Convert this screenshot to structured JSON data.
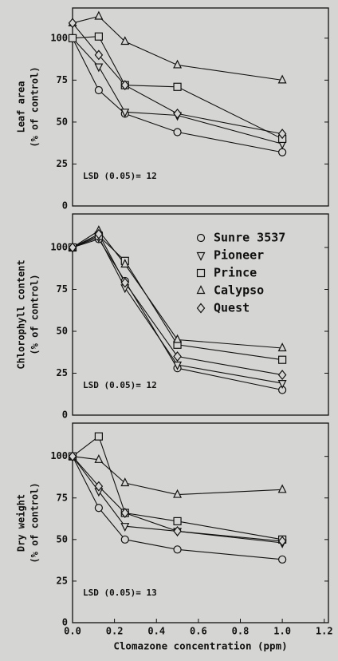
{
  "chart_data": [
    {
      "type": "line",
      "ylabel": [
        "Leaf area",
        "(% of control)"
      ],
      "annotation": "LSD (0.05)= 12",
      "x": [
        0,
        0.125,
        0.25,
        0.5,
        1.0
      ],
      "xlim": [
        0,
        1.22
      ],
      "ylim": [
        0,
        118
      ],
      "yticks": [
        0,
        25,
        50,
        75,
        100
      ],
      "series": [
        {
          "marker": "circle",
          "color": "#111111",
          "values": [
            100,
            69,
            55,
            44,
            32
          ]
        },
        {
          "marker": "triangle-down",
          "color": "#111111",
          "values": [
            100,
            83,
            56,
            54,
            37
          ]
        },
        {
          "marker": "square",
          "color": "#111111",
          "values": [
            100,
            101,
            72,
            71,
            40
          ]
        },
        {
          "marker": "triangle-up",
          "color": "#111111",
          "values": [
            109,
            113,
            98,
            84,
            75
          ]
        },
        {
          "marker": "diamond",
          "color": "#111111",
          "values": [
            109,
            90,
            72,
            55,
            43
          ]
        }
      ]
    },
    {
      "type": "line",
      "ylabel": [
        "Chlorophyll content",
        "(% of control)"
      ],
      "annotation": "LSD (0.05)= 12",
      "x": [
        0,
        0.125,
        0.25,
        0.5,
        1.0
      ],
      "xlim": [
        0,
        1.22
      ],
      "ylim": [
        0,
        120
      ],
      "yticks": [
        0,
        25,
        50,
        75,
        100
      ],
      "series": [
        {
          "name": "Sunre 3537",
          "marker": "circle",
          "color": "#111111",
          "values": [
            100,
            105,
            80,
            28,
            15
          ]
        },
        {
          "name": "Pioneer",
          "marker": "triangle-down",
          "color": "#111111",
          "values": [
            100,
            106,
            76,
            30,
            19
          ]
        },
        {
          "name": "Prince",
          "marker": "square",
          "color": "#111111",
          "values": [
            100,
            107,
            92,
            42,
            33
          ]
        },
        {
          "name": "Calypso",
          "marker": "triangle-up",
          "color": "#111111",
          "values": [
            100,
            110,
            90,
            45,
            40
          ]
        },
        {
          "name": "Quest",
          "marker": "diamond",
          "color": "#111111",
          "values": [
            100,
            108,
            79,
            35,
            24
          ]
        }
      ]
    },
    {
      "type": "line",
      "ylabel": [
        "Dry weight",
        "(% of control)"
      ],
      "annotation": "LSD (0.05)= 13",
      "xlabel": "Clomazone concentration (ppm)",
      "x": [
        0,
        0.125,
        0.25,
        0.5,
        1.0
      ],
      "xlim": [
        0,
        1.22
      ],
      "ylim": [
        0,
        120
      ],
      "yticks": [
        0,
        25,
        50,
        75,
        100
      ],
      "xticks": [
        {
          "value": 0,
          "label": "0.0"
        },
        0.2,
        0.4,
        0.6,
        0.8,
        {
          "value": 1,
          "label": "1.0"
        },
        1.2
      ],
      "series": [
        {
          "marker": "circle",
          "color": "#111111",
          "values": [
            100,
            69,
            50,
            44,
            38
          ]
        },
        {
          "marker": "triangle-down",
          "color": "#111111",
          "values": [
            100,
            79,
            58,
            55,
            48
          ]
        },
        {
          "marker": "square",
          "color": "#111111",
          "values": [
            100,
            112,
            66,
            61,
            50
          ]
        },
        {
          "marker": "triangle-up",
          "color": "#111111",
          "values": [
            100,
            98,
            84,
            77,
            80
          ]
        },
        {
          "marker": "diamond",
          "color": "#111111",
          "values": [
            100,
            82,
            66,
            55,
            49
          ]
        }
      ]
    }
  ]
}
